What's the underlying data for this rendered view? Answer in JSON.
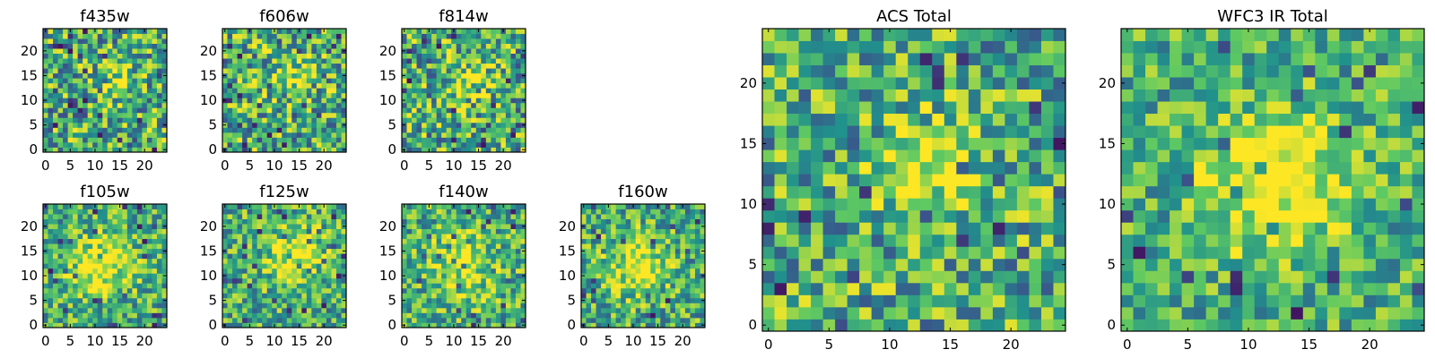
{
  "colormap": "viridis",
  "colormap_stops": [
    "#440154",
    "#3b528b",
    "#21918c",
    "#5ec962",
    "#fde725"
  ],
  "chart_data": [
    {
      "type": "heatmap",
      "title": "f435w",
      "grid_shape": [
        25,
        25
      ],
      "xlim": [
        0,
        24
      ],
      "ylim": [
        0,
        24
      ],
      "xticks": [
        0,
        5,
        10,
        15,
        20
      ],
      "yticks": [
        0,
        5,
        10,
        15,
        20
      ],
      "xtick_labels": [
        "0",
        "5",
        "10",
        "15",
        "20"
      ],
      "ytick_labels": [
        "0",
        "5",
        "10",
        "15",
        "20"
      ],
      "peak": [
        14,
        14
      ],
      "peak_strength": 0.2,
      "peak_radius": 3,
      "noise": 0.55,
      "seed": 11
    },
    {
      "type": "heatmap",
      "title": "f606w",
      "grid_shape": [
        25,
        25
      ],
      "xlim": [
        0,
        24
      ],
      "ylim": [
        0,
        24
      ],
      "xticks": [
        0,
        5,
        10,
        15,
        20
      ],
      "yticks": [
        0,
        5,
        10,
        15,
        20
      ],
      "xtick_labels": [
        "0",
        "5",
        "10",
        "15",
        "20"
      ],
      "ytick_labels": [
        "0",
        "5",
        "10",
        "15",
        "20"
      ],
      "peak": [
        13,
        14
      ],
      "peak_strength": 0.3,
      "peak_radius": 3,
      "noise": 0.55,
      "seed": 23
    },
    {
      "type": "heatmap",
      "title": "f814w",
      "grid_shape": [
        25,
        25
      ],
      "xlim": [
        0,
        24
      ],
      "ylim": [
        0,
        24
      ],
      "xticks": [
        0,
        5,
        10,
        15,
        20
      ],
      "yticks": [
        0,
        5,
        10,
        15,
        20
      ],
      "xtick_labels": [
        "0",
        "5",
        "10",
        "15",
        "20"
      ],
      "ytick_labels": [
        "0",
        "5",
        "10",
        "15",
        "20"
      ],
      "peak": [
        13,
        13
      ],
      "peak_strength": 0.35,
      "peak_radius": 3,
      "noise": 0.55,
      "seed": 37
    },
    {
      "type": "heatmap",
      "title": "f105w",
      "grid_shape": [
        25,
        25
      ],
      "xlim": [
        0,
        24
      ],
      "ylim": [
        0,
        24
      ],
      "xticks": [
        0,
        5,
        10,
        15,
        20
      ],
      "yticks": [
        0,
        5,
        10,
        15,
        20
      ],
      "xtick_labels": [
        "0",
        "5",
        "10",
        "15",
        "20"
      ],
      "ytick_labels": [
        "0",
        "5",
        "10",
        "15",
        "20"
      ],
      "peak": [
        11,
        12
      ],
      "peak_strength": 0.45,
      "peak_radius": 4,
      "noise": 0.45,
      "seed": 41
    },
    {
      "type": "heatmap",
      "title": "f125w",
      "grid_shape": [
        25,
        25
      ],
      "xlim": [
        0,
        24
      ],
      "ylim": [
        0,
        24
      ],
      "xticks": [
        0,
        5,
        10,
        15,
        20
      ],
      "yticks": [
        0,
        5,
        10,
        15,
        20
      ],
      "xtick_labels": [
        "0",
        "5",
        "10",
        "15",
        "20"
      ],
      "ytick_labels": [
        "0",
        "5",
        "10",
        "15",
        "20"
      ],
      "peak": [
        14,
        14
      ],
      "peak_strength": 0.4,
      "peak_radius": 4,
      "noise": 0.45,
      "seed": 53
    },
    {
      "type": "heatmap",
      "title": "f140w",
      "grid_shape": [
        25,
        25
      ],
      "xlim": [
        0,
        24
      ],
      "ylim": [
        0,
        24
      ],
      "xticks": [
        0,
        5,
        10,
        15,
        20
      ],
      "yticks": [
        0,
        5,
        10,
        15,
        20
      ],
      "xtick_labels": [
        "0",
        "5",
        "10",
        "15",
        "20"
      ],
      "ytick_labels": [
        "0",
        "5",
        "10",
        "15",
        "20"
      ],
      "peak": [
        12,
        12
      ],
      "peak_strength": 0.3,
      "peak_radius": 5,
      "noise": 0.45,
      "seed": 67
    },
    {
      "type": "heatmap",
      "title": "f160w",
      "grid_shape": [
        25,
        25
      ],
      "xlim": [
        0,
        24
      ],
      "ylim": [
        0,
        24
      ],
      "xticks": [
        0,
        5,
        10,
        15,
        20
      ],
      "yticks": [
        0,
        5,
        10,
        15,
        20
      ],
      "xtick_labels": [
        "0",
        "5",
        "10",
        "15",
        "20"
      ],
      "ytick_labels": [
        "0",
        "5",
        "10",
        "15",
        "20"
      ],
      "peak": [
        11,
        12
      ],
      "peak_strength": 0.4,
      "peak_radius": 4,
      "noise": 0.45,
      "seed": 79
    },
    {
      "type": "heatmap",
      "title": "ACS Total",
      "grid_shape": [
        25,
        25
      ],
      "xlim": [
        0,
        24
      ],
      "ylim": [
        0,
        24
      ],
      "xticks": [
        0,
        5,
        10,
        15,
        20
      ],
      "yticks": [
        0,
        5,
        10,
        15,
        20
      ],
      "xtick_labels": [
        "0",
        "5",
        "10",
        "15",
        "20"
      ],
      "ytick_labels": [
        "0",
        "5",
        "10",
        "15",
        "20"
      ],
      "peak": [
        13,
        13
      ],
      "peak_strength": 0.4,
      "peak_radius": 3,
      "noise": 0.5,
      "seed": 97
    },
    {
      "type": "heatmap",
      "title": "WFC3 IR Total",
      "grid_shape": [
        25,
        25
      ],
      "xlim": [
        0,
        24
      ],
      "ylim": [
        0,
        24
      ],
      "xticks": [
        0,
        5,
        10,
        15,
        20
      ],
      "yticks": [
        0,
        5,
        10,
        15,
        20
      ],
      "xtick_labels": [
        "0",
        "5",
        "10",
        "15",
        "20"
      ],
      "ytick_labels": [
        "0",
        "5",
        "10",
        "15",
        "20"
      ],
      "peak": [
        12,
        12
      ],
      "peak_strength": 0.5,
      "peak_radius": 4,
      "noise": 0.4,
      "seed": 113
    }
  ]
}
